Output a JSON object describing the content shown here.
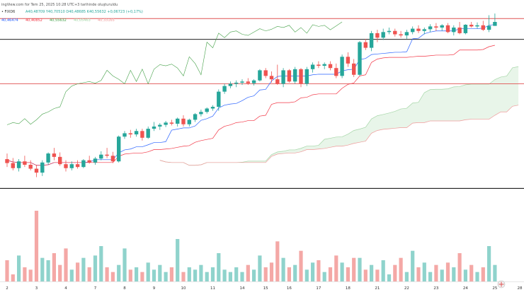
{
  "header": {
    "published_line": "ingView.com for Tem 25, 2025 10:28 UTC+3 tarihinde oluşturuldu",
    "symbol_line_prefix": "• FIXD6",
    "ohlc_text": "A40,48709  Y40,70510  D40,48685  K40,55632  +0,06723 (+0,17%)",
    "ichimoku_values": [
      {
        "text": "40,46474",
        "color": "#2962ff"
      },
      {
        "text": "40,40852",
        "color": "#f23645"
      },
      {
        "text": "40,55632",
        "color": "#43a047"
      },
      {
        "text": "40,05463",
        "color": "#a5d6a7"
      },
      {
        "text": "40,33165",
        "color": "#ef9a9a"
      }
    ]
  },
  "colors": {
    "up": "#26a69a",
    "down": "#ef5350",
    "up_volume": "#8fd3cc",
    "down_volume": "#f4a8a6",
    "tenkan": "#2962ff",
    "kijun": "#f23645",
    "chikou": "#43a047",
    "cloud": "#e8f5e9",
    "level_red": "#e05252",
    "level_black": "#000000"
  },
  "chart_data": {
    "type": "candlestick",
    "x_tick_labels": [
      "2",
      "3",
      "4",
      "7",
      "8",
      "9",
      "10",
      "11",
      "14",
      "15",
      "16",
      "17",
      "18",
      "21",
      "22",
      "23",
      "24",
      "25",
      "28"
    ],
    "y_range_estimate": [
      36.8,
      40.95
    ],
    "horizontal_levels": [
      {
        "value": 40.62,
        "color": "red"
      },
      {
        "value": 40.25,
        "color": "black"
      },
      {
        "value": 39.46,
        "color": "red"
      },
      {
        "value": 37.6,
        "color": "black"
      }
    ],
    "candles": [
      [
        38.12,
        38.22,
        37.98,
        38.05
      ],
      [
        38.05,
        38.14,
        37.92,
        37.96
      ],
      [
        37.96,
        38.12,
        37.9,
        38.08
      ],
      [
        38.08,
        38.18,
        37.98,
        38.02
      ],
      [
        38.02,
        38.1,
        37.92,
        37.95
      ],
      [
        37.95,
        38.02,
        37.8,
        37.88
      ],
      [
        37.88,
        38.1,
        37.82,
        38.06
      ],
      [
        38.06,
        38.24,
        38.02,
        38.22
      ],
      [
        38.22,
        38.32,
        38.1,
        38.16
      ],
      [
        38.16,
        38.24,
        38.0,
        38.03
      ],
      [
        38.03,
        38.1,
        37.9,
        37.96
      ],
      [
        37.96,
        38.08,
        37.92,
        38.03
      ],
      [
        38.03,
        38.1,
        37.95,
        37.98
      ],
      [
        37.98,
        38.12,
        37.96,
        38.1
      ],
      [
        38.1,
        38.18,
        38.04,
        38.06
      ],
      [
        38.06,
        38.16,
        38.02,
        38.13
      ],
      [
        38.13,
        38.26,
        38.1,
        38.2
      ],
      [
        38.2,
        38.32,
        38.14,
        38.18
      ],
      [
        38.18,
        38.25,
        38.05,
        38.08
      ],
      [
        38.08,
        38.54,
        38.06,
        38.52
      ],
      [
        38.52,
        38.62,
        38.48,
        38.58
      ],
      [
        38.58,
        38.64,
        38.5,
        38.56
      ],
      [
        38.56,
        38.66,
        38.52,
        38.62
      ],
      [
        38.62,
        38.66,
        38.45,
        38.5
      ],
      [
        38.5,
        38.7,
        38.48,
        38.66
      ],
      [
        38.66,
        38.78,
        38.62,
        38.7
      ],
      [
        38.7,
        38.76,
        38.64,
        38.73
      ],
      [
        38.73,
        38.8,
        38.69,
        38.77
      ],
      [
        38.77,
        38.82,
        38.72,
        38.75
      ],
      [
        38.75,
        38.86,
        38.7,
        38.84
      ],
      [
        38.84,
        38.9,
        38.7,
        38.74
      ],
      [
        38.74,
        38.84,
        38.7,
        38.82
      ],
      [
        38.82,
        38.94,
        38.78,
        38.92
      ],
      [
        38.92,
        39.0,
        38.88,
        38.96
      ],
      [
        38.96,
        39.04,
        38.93,
        39.02
      ],
      [
        39.02,
        39.08,
        38.98,
        39.05
      ],
      [
        39.05,
        39.36,
        38.98,
        39.32
      ],
      [
        39.32,
        39.46,
        39.28,
        39.42
      ],
      [
        39.42,
        39.5,
        39.38,
        39.46
      ],
      [
        39.46,
        39.52,
        39.4,
        39.48
      ],
      [
        39.48,
        39.54,
        39.44,
        39.5
      ],
      [
        39.5,
        39.56,
        39.44,
        39.47
      ],
      [
        39.47,
        39.54,
        39.43,
        39.52
      ],
      [
        39.52,
        39.72,
        39.5,
        39.7
      ],
      [
        39.7,
        39.74,
        39.56,
        39.6
      ],
      [
        39.6,
        39.68,
        39.48,
        39.54
      ],
      [
        39.54,
        39.8,
        39.44,
        39.46
      ],
      [
        39.46,
        39.74,
        39.4,
        39.7
      ],
      [
        39.7,
        39.72,
        39.48,
        39.5
      ],
      [
        39.5,
        39.76,
        39.46,
        39.72
      ],
      [
        39.72,
        39.74,
        39.4,
        39.46
      ],
      [
        39.46,
        39.76,
        39.42,
        39.72
      ],
      [
        39.72,
        39.84,
        39.66,
        39.8
      ],
      [
        39.8,
        39.86,
        39.74,
        39.78
      ],
      [
        39.78,
        39.84,
        39.72,
        39.81
      ],
      [
        39.81,
        39.86,
        39.7,
        39.74
      ],
      [
        39.74,
        39.82,
        39.56,
        39.6
      ],
      [
        39.6,
        39.98,
        39.56,
        39.94
      ],
      [
        39.94,
        40.02,
        39.76,
        39.82
      ],
      [
        39.82,
        39.9,
        39.58,
        39.62
      ],
      [
        39.62,
        40.22,
        39.6,
        40.2
      ],
      [
        40.2,
        40.26,
        40.06,
        40.1
      ],
      [
        40.1,
        40.4,
        40.04,
        40.36
      ],
      [
        40.36,
        40.42,
        40.2,
        40.28
      ],
      [
        40.28,
        40.44,
        40.24,
        40.38
      ],
      [
        40.38,
        40.46,
        40.34,
        40.4
      ],
      [
        40.4,
        40.44,
        40.3,
        40.34
      ],
      [
        40.34,
        40.4,
        40.28,
        40.32
      ],
      [
        40.32,
        40.42,
        40.26,
        40.38
      ],
      [
        40.38,
        40.48,
        40.34,
        40.44
      ],
      [
        40.44,
        40.5,
        40.36,
        40.4
      ],
      [
        40.4,
        40.46,
        40.34,
        40.43
      ],
      [
        40.43,
        40.52,
        40.38,
        40.48
      ],
      [
        40.48,
        40.54,
        40.4,
        40.46
      ],
      [
        40.46,
        40.52,
        40.4,
        40.5
      ],
      [
        40.5,
        40.54,
        40.36,
        40.38
      ],
      [
        40.38,
        40.5,
        40.32,
        40.46
      ],
      [
        40.46,
        40.56,
        40.34,
        40.36
      ],
      [
        40.36,
        40.52,
        40.34,
        40.51
      ],
      [
        40.51,
        40.56,
        40.46,
        40.48
      ],
      [
        40.48,
        40.55,
        40.44,
        40.5
      ],
      [
        40.5,
        40.58,
        40.4,
        40.42
      ],
      [
        40.42,
        40.68,
        40.38,
        40.49
      ],
      [
        40.49,
        40.71,
        40.49,
        40.56
      ]
    ],
    "volumes": [
      18,
      6,
      22,
      12,
      10,
      60,
      20,
      18,
      24,
      14,
      28,
      10,
      16,
      20,
      12,
      22,
      30,
      12,
      8,
      14,
      28,
      10,
      12,
      8,
      16,
      10,
      14,
      8,
      12,
      36,
      8,
      12,
      10,
      14,
      8,
      12,
      24,
      10,
      8,
      12,
      8,
      14,
      10,
      22,
      12,
      16,
      34,
      20,
      12,
      14,
      26,
      10,
      16,
      18,
      8,
      12,
      22,
      16,
      12,
      20,
      20,
      10,
      14,
      10,
      18,
      6,
      14,
      20,
      8,
      26,
      12,
      16,
      8,
      14,
      10,
      16,
      12,
      24,
      10,
      14,
      8,
      12,
      30,
      14
    ]
  }
}
